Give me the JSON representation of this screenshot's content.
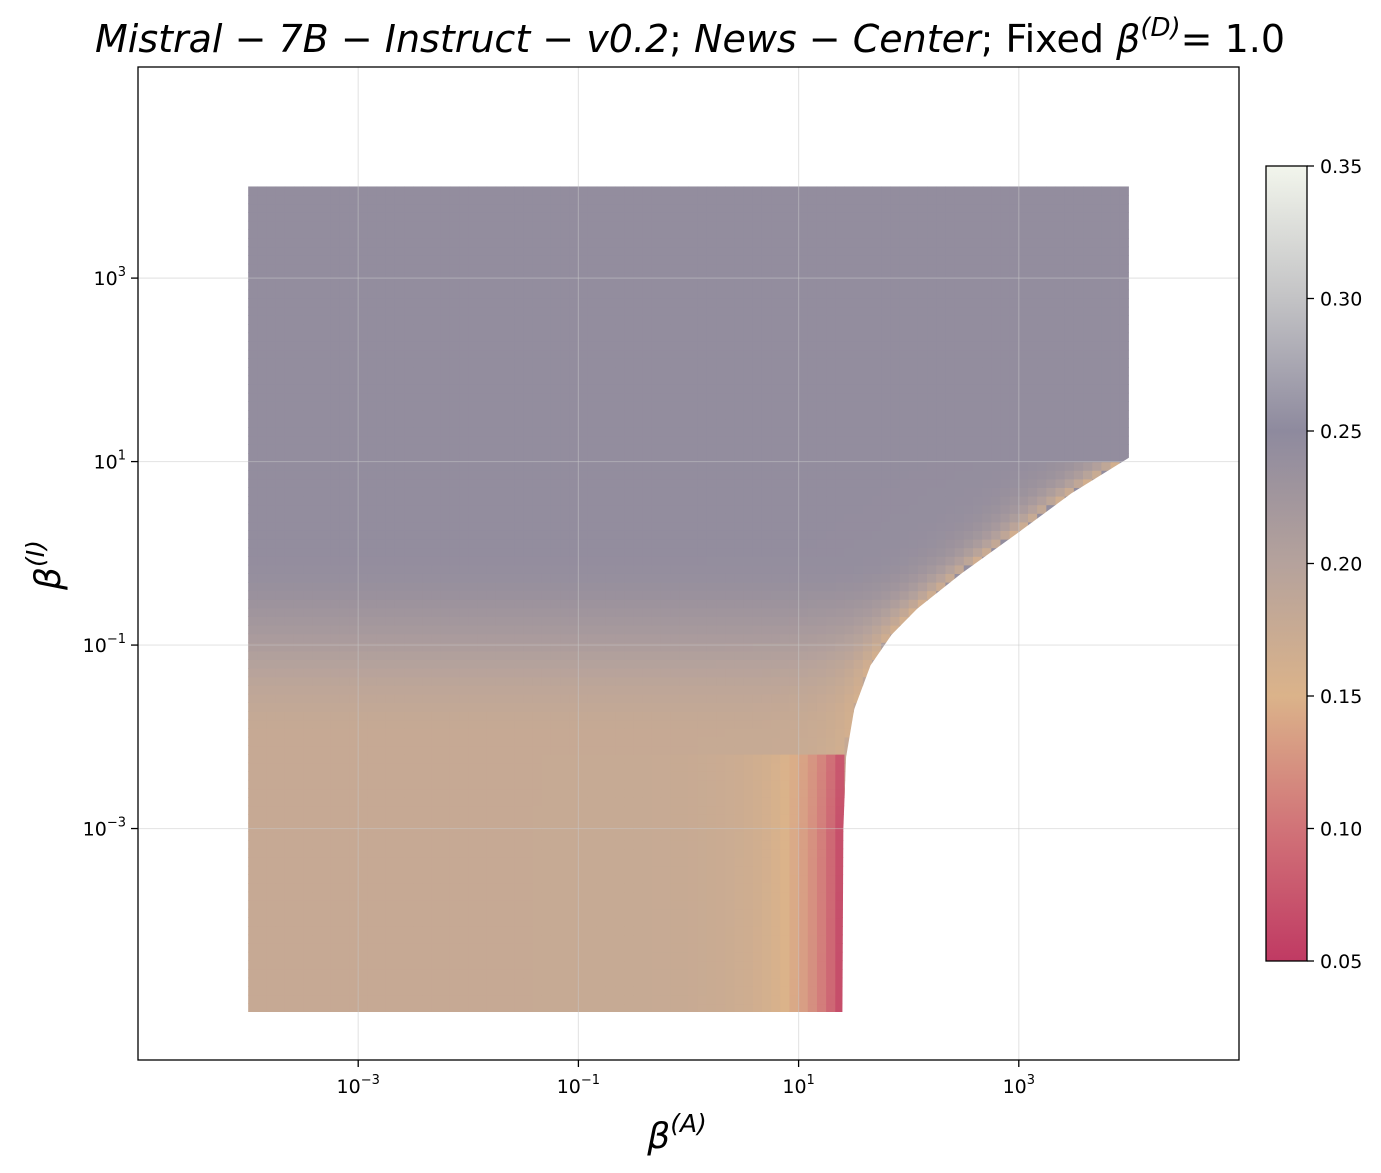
{
  "chart_data": {
    "type": "heatmap",
    "title": {
      "model": "Mistral − 7B − Instruct − v0.2",
      "dataset": "News − Center",
      "fixed_prefix": "Fixed",
      "fixed_symbol": "β",
      "fixed_sup": "(D)",
      "fixed_value": "= 1.0"
    },
    "xlabel": {
      "symbol": "β",
      "sup": "(A)"
    },
    "ylabel": {
      "symbol": "β",
      "sup": "(I)"
    },
    "x_scale": "log",
    "y_scale": "log",
    "xlim": [
      1e-05,
      100000
    ],
    "ylim": [
      3e-06,
      200000
    ],
    "grid": true,
    "x_ticks": [
      {
        "value": 0.001,
        "base": "10",
        "exp": "−3"
      },
      {
        "value": 0.1,
        "base": "10",
        "exp": "−1"
      },
      {
        "value": 10,
        "base": "10",
        "exp": "1"
      },
      {
        "value": 1000,
        "base": "10",
        "exp": "3"
      }
    ],
    "y_ticks": [
      {
        "value": 0.001,
        "base": "10",
        "exp": "−3"
      },
      {
        "value": 0.1,
        "base": "10",
        "exp": "−1"
      },
      {
        "value": 10,
        "base": "10",
        "exp": "1"
      },
      {
        "value": 1000,
        "base": "10",
        "exp": "3"
      }
    ],
    "data_extent": {
      "x": [
        0.0001,
        10000
      ],
      "y": [
        1e-05,
        10000
      ]
    },
    "valid_region_boundary": [
      {
        "x": 25,
        "y": 1e-05
      },
      {
        "x": 25.5,
        "y": 0.001
      },
      {
        "x": 27,
        "y": 0.006
      },
      {
        "x": 32,
        "y": 0.02
      },
      {
        "x": 45,
        "y": 0.06
      },
      {
        "x": 70,
        "y": 0.13
      },
      {
        "x": 120,
        "y": 0.25
      },
      {
        "x": 300,
        "y": 0.6
      },
      {
        "x": 1000,
        "y": 1.7
      },
      {
        "x": 3000,
        "y": 4.5
      },
      {
        "x": 10000,
        "y": 11
      }
    ],
    "colorbar": {
      "min": 0.05,
      "max": 0.35,
      "ticks": [
        "0.05",
        "0.10",
        "0.15",
        "0.20",
        "0.25",
        "0.30",
        "0.35"
      ],
      "tick_values": [
        0.05,
        0.1,
        0.15,
        0.2,
        0.25,
        0.3,
        0.35
      ],
      "colormap": [
        {
          "v": 0.05,
          "color": "#c03a63"
        },
        {
          "v": 0.1,
          "color": "#d17378"
        },
        {
          "v": 0.15,
          "color": "#dbb38a"
        },
        {
          "v": 0.2,
          "color": "#b5a29c"
        },
        {
          "v": 0.25,
          "color": "#8e8a9e"
        },
        {
          "v": 0.3,
          "color": "#c3c3c5"
        },
        {
          "v": 0.35,
          "color": "#f2f5ec"
        }
      ]
    },
    "value_field": {
      "plateau_value": 0.243,
      "low_beta_i_value": 0.178,
      "transition_beta_i_range": [
        0.01,
        1
      ],
      "min_value_near_boundary": 0.06
    }
  }
}
